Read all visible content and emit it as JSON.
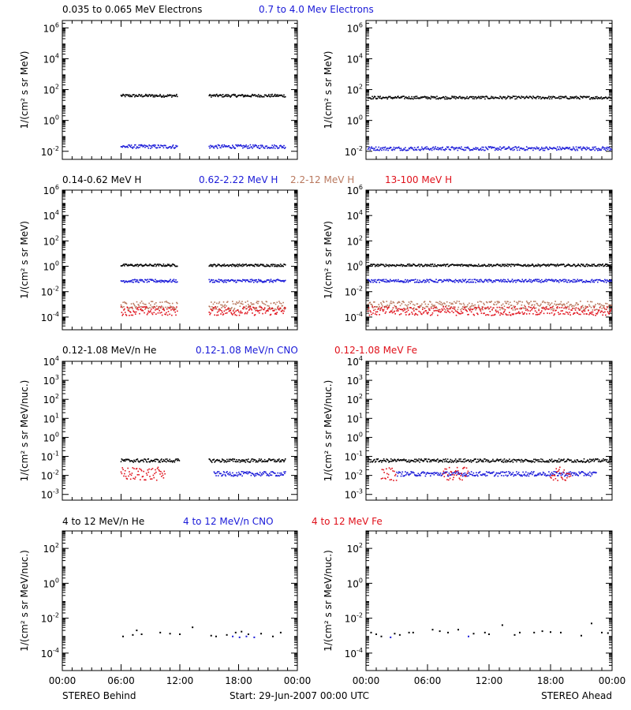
{
  "colors": {
    "black": "#000000",
    "blue": "#1a1ad8",
    "tan": "#b9785e",
    "red": "#e0101a"
  },
  "rows": [
    {
      "legend": [
        {
          "text": "0.035 to 0.065 MeV Electrons",
          "color": "black"
        },
        {
          "text": "0.7 to 4.0 Mev Electrons",
          "color": "blue"
        }
      ],
      "ylabel": "1/(cm² s sr MeV)",
      "yticks": [
        {
          "base": "10",
          "exp": "6",
          "value": 1000000.0
        },
        {
          "base": "10",
          "exp": "4",
          "value": 10000.0
        },
        {
          "base": "10",
          "exp": "2",
          "value": 100.0
        },
        {
          "base": "10",
          "exp": "0",
          "value": 1.0
        },
        {
          "base": "10",
          "exp": "-2",
          "value": 0.01
        }
      ]
    },
    {
      "legend": [
        {
          "text": "0.14-0.62 MeV H",
          "color": "black"
        },
        {
          "text": "0.62-2.22 MeV H",
          "color": "blue"
        },
        {
          "text": "2.2-12 MeV H",
          "color": "tan"
        },
        {
          "text": "13-100 MeV H",
          "color": "red"
        }
      ],
      "ylabel": "1/(cm² s sr MeV)",
      "yticks": [
        {
          "base": "10",
          "exp": "6",
          "value": 1000000.0
        },
        {
          "base": "10",
          "exp": "4",
          "value": 10000.0
        },
        {
          "base": "10",
          "exp": "2",
          "value": 100.0
        },
        {
          "base": "10",
          "exp": "0",
          "value": 1.0
        },
        {
          "base": "10",
          "exp": "-2",
          "value": 0.01
        },
        {
          "base": "10",
          "exp": "-4",
          "value": 0.0001
        }
      ]
    },
    {
      "legend": [
        {
          "text": "0.12-1.08 MeV/n He",
          "color": "black"
        },
        {
          "text": "0.12-1.08 MeV/n CNO",
          "color": "blue"
        },
        {
          "text": "0.12-1.08 MeV Fe",
          "color": "red"
        }
      ],
      "ylabel": "1/(cm² s sr MeV/nuc.)",
      "yticks": [
        {
          "base": "10",
          "exp": "4",
          "value": 10000.0
        },
        {
          "base": "10",
          "exp": "3",
          "value": 1000.0
        },
        {
          "base": "10",
          "exp": "2",
          "value": 100.0
        },
        {
          "base": "10",
          "exp": "1",
          "value": 10.0
        },
        {
          "base": "10",
          "exp": "0",
          "value": 1.0
        },
        {
          "base": "10",
          "exp": "-1",
          "value": 0.1
        },
        {
          "base": "10",
          "exp": "-2",
          "value": 0.01
        },
        {
          "base": "10",
          "exp": "-3",
          "value": 0.001
        }
      ]
    },
    {
      "legend": [
        {
          "text": "4 to 12 MeV/n He",
          "color": "black"
        },
        {
          "text": "4 to 12 MeV/n CNO",
          "color": "blue"
        },
        {
          "text": "4 to 12 MeV Fe",
          "color": "red"
        }
      ],
      "ylabel": "1/(cm² s sr MeV/nuc.)",
      "yticks": [
        {
          "base": "10",
          "exp": "2",
          "value": 100.0
        },
        {
          "base": "10",
          "exp": "0",
          "value": 1.0
        },
        {
          "base": "10",
          "exp": "-2",
          "value": 0.01
        },
        {
          "base": "10",
          "exp": "-4",
          "value": 0.0001
        }
      ]
    }
  ],
  "xticks": [
    "00:00",
    "06:00",
    "12:00",
    "18:00",
    "00:00"
  ],
  "footer": {
    "left": "STEREO Behind",
    "center": "Start: 29-Jun-2007 00:00 UTC",
    "right": "STEREO Ahead"
  },
  "chart_data": [
    {
      "type": "scatter",
      "panel": "STEREO Behind",
      "yscale": "log",
      "ylim": [
        0.003,
        3000000.0
      ],
      "xlim": [
        0,
        24
      ],
      "series": [
        {
          "name": "0.035 to 0.065 MeV Electrons",
          "color": "black",
          "data_ranges": [
            [
              6.0,
              11.8
            ],
            [
              15.0,
              22.8
            ]
          ],
          "typical": 40
        },
        {
          "name": "0.7 to 4.0 Mev Electrons",
          "color": "blue",
          "data_ranges": [
            [
              6.0,
              11.8
            ],
            [
              15.0,
              22.8
            ]
          ],
          "typical": 0.02
        }
      ]
    },
    {
      "type": "scatter",
      "panel": "STEREO Ahead",
      "yscale": "log",
      "ylim": [
        0.003,
        3000000.0
      ],
      "xlim": [
        0,
        24
      ],
      "series": [
        {
          "name": "0.035 to 0.065 MeV Electrons",
          "color": "black",
          "data_ranges": [
            [
              0.2,
              24
            ]
          ],
          "typical": 30
        },
        {
          "name": "0.7 to 4.0 Mev Electrons",
          "color": "blue",
          "data_ranges": [
            [
              0.2,
              24
            ]
          ],
          "typical": 0.015
        }
      ]
    },
    {
      "type": "scatter",
      "panel": "STEREO Behind",
      "yscale": "log",
      "ylim": [
        1e-05,
        1000000.0
      ],
      "xlim": [
        0,
        24
      ],
      "series": [
        {
          "name": "0.14-0.62 MeV H",
          "color": "black",
          "data_ranges": [
            [
              6.0,
              11.8
            ],
            [
              15.0,
              22.8
            ]
          ],
          "typical": 1.2
        },
        {
          "name": "0.62-2.22 MeV H",
          "color": "blue",
          "data_ranges": [
            [
              6.0,
              11.8
            ],
            [
              15.0,
              22.8
            ]
          ],
          "typical": 0.07
        },
        {
          "name": "2.2-12 MeV H",
          "color": "tan",
          "data_ranges": [
            [
              6.0,
              11.8
            ],
            [
              15.0,
              22.8
            ]
          ],
          "typical": 0.0008
        },
        {
          "name": "13-100 MeV H",
          "color": "red",
          "data_ranges": [
            [
              6.0,
              11.8
            ],
            [
              15.0,
              22.8
            ]
          ],
          "typical": 0.0003
        }
      ]
    },
    {
      "type": "scatter",
      "panel": "STEREO Ahead",
      "yscale": "log",
      "ylim": [
        1e-05,
        1000000.0
      ],
      "xlim": [
        0,
        24
      ],
      "series": [
        {
          "name": "0.14-0.62 MeV H",
          "color": "black",
          "data_ranges": [
            [
              0.2,
              24
            ]
          ],
          "typical": 1.2
        },
        {
          "name": "0.62-2.22 MeV H",
          "color": "blue",
          "data_ranges": [
            [
              0.2,
              24
            ]
          ],
          "typical": 0.07
        },
        {
          "name": "2.2-12 MeV H",
          "color": "tan",
          "data_ranges": [
            [
              0.2,
              24
            ]
          ],
          "typical": 0.0008
        },
        {
          "name": "13-100 MeV H",
          "color": "red",
          "data_ranges": [
            [
              0.2,
              24
            ]
          ],
          "typical": 0.0003
        }
      ]
    },
    {
      "type": "scatter",
      "panel": "STEREO Behind",
      "yscale": "log",
      "ylim": [
        0.0005,
        10000.0
      ],
      "xlim": [
        0,
        24
      ],
      "series": [
        {
          "name": "0.12-1.08 MeV/n He",
          "color": "black",
          "data_ranges": [
            [
              6.0,
              12.0
            ],
            [
              15.0,
              22.8
            ]
          ],
          "typical": 0.06
        },
        {
          "name": "0.12-1.08 MeV/n CNO",
          "color": "blue",
          "data_ranges": [
            [
              15.5,
              22.8
            ]
          ],
          "typical": 0.012
        },
        {
          "name": "0.12-1.08 MeV Fe",
          "color": "red",
          "data_ranges": [
            [
              6.0,
              10.5
            ]
          ],
          "typical": 0.012
        }
      ]
    },
    {
      "type": "scatter",
      "panel": "STEREO Ahead",
      "yscale": "log",
      "ylim": [
        0.0005,
        10000.0
      ],
      "xlim": [
        0,
        24
      ],
      "series": [
        {
          "name": "0.12-1.08 MeV/n He",
          "color": "black",
          "data_ranges": [
            [
              0.2,
              24
            ]
          ],
          "typical": 0.06
        },
        {
          "name": "0.12-1.08 MeV/n CNO",
          "color": "blue",
          "data_ranges": [
            [
              3.0,
              22.5
            ]
          ],
          "typical": 0.012
        },
        {
          "name": "0.12-1.08 MeV Fe",
          "color": "red",
          "data_ranges": [
            [
              1.5,
              3.0
            ],
            [
              7.5,
              10.0
            ],
            [
              18.0,
              20.0
            ]
          ],
          "typical": 0.012
        }
      ]
    },
    {
      "type": "scatter",
      "panel": "STEREO Behind",
      "yscale": "log",
      "ylim": [
        1e-05,
        1000.0
      ],
      "xlim": [
        0,
        24
      ],
      "series": [
        {
          "name": "4 to 12 MeV/n He",
          "color": "black",
          "points": [
            [
              6.2,
              0.0009
            ],
            [
              7.2,
              0.0011
            ],
            [
              7.6,
              0.002
            ],
            [
              8.1,
              0.0012
            ],
            [
              10.0,
              0.0015
            ],
            [
              11.0,
              0.0013
            ],
            [
              12.0,
              0.0012
            ],
            [
              13.3,
              0.003
            ],
            [
              15.2,
              0.001
            ],
            [
              15.7,
              0.0009
            ],
            [
              16.8,
              0.0011
            ],
            [
              17.7,
              0.0015
            ],
            [
              18.3,
              0.0017
            ],
            [
              19.0,
              0.0012
            ],
            [
              20.3,
              0.0013
            ],
            [
              21.5,
              0.0009
            ],
            [
              22.3,
              0.0015
            ]
          ]
        },
        {
          "name": "4 to 12 MeV/n CNO",
          "color": "blue",
          "points": [
            [
              17.4,
              0.0009
            ],
            [
              18.1,
              0.0008
            ],
            [
              18.8,
              0.0009
            ],
            [
              19.6,
              0.0008
            ]
          ]
        },
        {
          "name": "4 to 12 MeV Fe",
          "color": "red",
          "points": []
        }
      ]
    },
    {
      "type": "scatter",
      "panel": "STEREO Ahead",
      "yscale": "log",
      "ylim": [
        1e-05,
        1000.0
      ],
      "xlim": [
        0,
        24
      ],
      "series": [
        {
          "name": "4 to 12 MeV/n He",
          "color": "black",
          "points": [
            [
              0.5,
              0.0015
            ],
            [
              1.0,
              0.0012
            ],
            [
              1.5,
              0.0009
            ],
            [
              2.8,
              0.0013
            ],
            [
              3.3,
              0.0011
            ],
            [
              4.2,
              0.0015
            ],
            [
              4.6,
              0.0015
            ],
            [
              6.5,
              0.0022
            ],
            [
              7.2,
              0.0018
            ],
            [
              8.0,
              0.0015
            ],
            [
              9.0,
              0.0022
            ],
            [
              10.5,
              0.0013
            ],
            [
              11.6,
              0.0015
            ],
            [
              12.0,
              0.0012
            ],
            [
              13.3,
              0.004
            ],
            [
              14.5,
              0.0011
            ],
            [
              15.0,
              0.0015
            ],
            [
              16.4,
              0.0015
            ],
            [
              17.2,
              0.0018
            ],
            [
              18.0,
              0.0016
            ],
            [
              19.0,
              0.0015
            ],
            [
              21.0,
              0.001
            ],
            [
              22.0,
              0.005
            ],
            [
              23.0,
              0.0015
            ],
            [
              23.6,
              0.0014
            ]
          ]
        },
        {
          "name": "4 to 12 MeV/n CNO",
          "color": "blue",
          "points": [
            [
              2.4,
              0.0008
            ],
            [
              10.0,
              0.0009
            ]
          ]
        },
        {
          "name": "4 to 12 MeV Fe",
          "color": "red",
          "points": []
        }
      ]
    }
  ]
}
